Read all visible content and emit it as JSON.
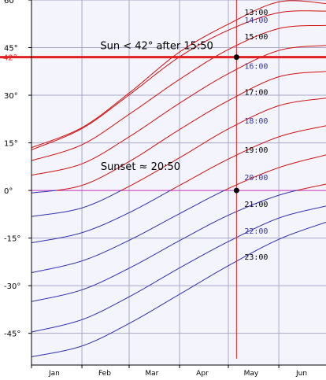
{
  "chart_data": {
    "type": "line",
    "title": "",
    "xlabel": "",
    "ylabel": "",
    "x_ticks": [
      "Jan",
      "Feb",
      "Mar",
      "Apr",
      "May",
      "Jun"
    ],
    "x_tick_dates": [
      "2000-01-15",
      "2000-02-15",
      "2000-03-15",
      "2000-04-15",
      "2000-05-15",
      "2000-06-15"
    ],
    "xlim": [
      "2000-01-01",
      "2000-06-30"
    ],
    "y_ticks": [
      60,
      45,
      30,
      15,
      0,
      -15,
      -30,
      -45
    ],
    "y_tick_labels": [
      "60°",
      "45°",
      "30°",
      "15°",
      "0°",
      "-15°",
      "-30°",
      "-45°"
    ],
    "ylim": [
      -55,
      60
    ],
    "grid": true,
    "colors": {
      "daylight_curve": "#d01010",
      "night_curve": "#3030b0",
      "highlight": "#e02020",
      "horizon": "#d040c0",
      "grid": "#a8a8c8",
      "background": "#f4f4fc",
      "hour_label_day": "#000000",
      "hour_label_night": "#3030b0"
    },
    "series": [
      {
        "hour": "13:00",
        "x": [
          "2000-01-01",
          "2000-02-01",
          "2000-03-01",
          "2000-04-01",
          "2000-05-01",
          "2000-06-01",
          "2000-06-30"
        ],
        "y": [
          13.5,
          19.8,
          30.7,
          43.6,
          52.4,
          59.4,
          58.9
        ]
      },
      {
        "hour": "14:00",
        "x": [
          "2000-01-01",
          "2000-02-01",
          "2000-03-01",
          "2000-04-01",
          "2000-05-01",
          "2000-06-01",
          "2000-06-30"
        ],
        "y": [
          12.8,
          19.5,
          30.1,
          42.1,
          50.5,
          56.0,
          56.5
        ]
      },
      {
        "hour": "15:00",
        "x": [
          "2000-01-01",
          "2000-02-01",
          "2000-03-01",
          "2000-04-01",
          "2000-05-01",
          "2000-06-01",
          "2000-06-30"
        ],
        "y": [
          9.4,
          14.4,
          24.0,
          35.0,
          44.4,
          51.0,
          52.0
        ]
      },
      {
        "hour": "16:00",
        "x": [
          "2000-01-01",
          "2000-02-01",
          "2000-03-01",
          "2000-04-01",
          "2000-05-01",
          "2000-06-01",
          "2000-06-30"
        ],
        "y": [
          4.8,
          8.4,
          16.9,
          27.5,
          36.8,
          44.1,
          45.7
        ]
      },
      {
        "hour": "17:00",
        "x": [
          "2000-01-01",
          "2000-02-01",
          "2000-03-01",
          "2000-04-01",
          "2000-05-01",
          "2000-06-01",
          "2000-06-30"
        ],
        "y": [
          -0.8,
          1.6,
          9.1,
          19.2,
          28.3,
          35.8,
          37.5
        ]
      },
      {
        "hour": "18:00",
        "x": [
          "2000-01-01",
          "2000-02-01",
          "2000-03-01",
          "2000-04-01",
          "2000-05-01",
          "2000-06-01",
          "2000-06-30"
        ],
        "y": [
          -8.2,
          -5.5,
          1.3,
          10.3,
          19.4,
          26.7,
          29.1
        ]
      },
      {
        "hour": "19:00",
        "x": [
          "2000-01-01",
          "2000-02-01",
          "2000-03-01",
          "2000-04-01",
          "2000-05-01",
          "2000-06-01",
          "2000-06-30"
        ],
        "y": [
          -16.5,
          -13.3,
          -7.0,
          1.6,
          9.9,
          16.9,
          20.4
        ]
      },
      {
        "hour": "20:00",
        "x": [
          "2000-01-01",
          "2000-02-01",
          "2000-03-01",
          "2000-04-01",
          "2000-05-01",
          "2000-06-01",
          "2000-06-30"
        ],
        "y": [
          -25.9,
          -22.2,
          -15.7,
          -7.3,
          0.6,
          7.2,
          11.2
        ]
      },
      {
        "hour": "21:00",
        "x": [
          "2000-01-01",
          "2000-02-01",
          "2000-03-01",
          "2000-04-01",
          "2000-05-01",
          "2000-06-01",
          "2000-06-30"
        ],
        "y": [
          -35.0,
          -31.3,
          -24.5,
          -15.8,
          -7.8,
          -1.5,
          2.0
        ]
      },
      {
        "hour": "22:00",
        "x": [
          "2000-01-01",
          "2000-02-01",
          "2000-03-01",
          "2000-04-01",
          "2000-05-01",
          "2000-06-01",
          "2000-06-30"
        ],
        "y": [
          -44.6,
          -40.7,
          -33.5,
          -24.4,
          -16.1,
          -8.7,
          -4.9
        ]
      },
      {
        "hour": "23:00",
        "x": [
          "2000-01-01",
          "2000-02-01",
          "2000-03-01",
          "2000-04-01",
          "2000-05-01",
          "2000-06-01",
          "2000-06-30"
        ],
        "y": [
          -52.4,
          -49.0,
          -41.9,
          -32.7,
          -23.7,
          -15.4,
          -10.0
        ]
      }
    ],
    "highlight_altitude": {
      "y": 42,
      "label": "42°"
    },
    "horizon_line": {
      "y": 0
    },
    "marker_date": "2000-05-06",
    "points": [
      {
        "x": "2000-05-06",
        "y": 42
      },
      {
        "x": "2000-05-06",
        "y": 0
      }
    ],
    "annotations": [
      {
        "text": "Sun < 42° after 15:50",
        "x": "2000-03-18",
        "y": 44.5
      },
      {
        "text": "Sunset ≈ 20:50",
        "x": "2000-03-08",
        "y": 6.5
      }
    ],
    "hour_labels": [
      {
        "text": "13:00",
        "y": 56.0,
        "night": false
      },
      {
        "text": "14:00",
        "y": 53.5,
        "night": true
      },
      {
        "text": "15:00",
        "y": 48.3,
        "night": false
      },
      {
        "text": "16:00",
        "y": 39.1,
        "night": true
      },
      {
        "text": "17:00",
        "y": 30.9,
        "night": false
      },
      {
        "text": "18:00",
        "y": 21.8,
        "night": true
      },
      {
        "text": "19:00",
        "y": 12.6,
        "night": false
      },
      {
        "text": "20:00",
        "y": 4.0,
        "night": true
      },
      {
        "text": "21:00",
        "y": -4.4,
        "night": false
      },
      {
        "text": "22:00",
        "y": -12.9,
        "night": true
      },
      {
        "text": "23:00",
        "y": -21.1,
        "night": false
      }
    ]
  }
}
